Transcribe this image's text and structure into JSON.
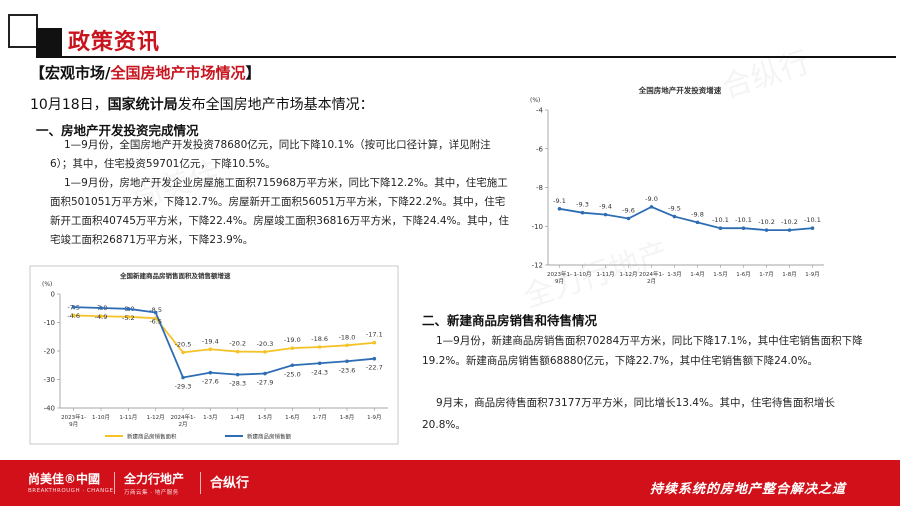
{
  "header": {
    "title": "政策资讯"
  },
  "section_title": {
    "prefix": "【宏观市场/",
    "highlight": "全国房地产市场情况",
    "suffix": "】"
  },
  "intro": {
    "date": "10月18日，",
    "org": "国家统计局",
    "rest": "发布全国房地产市场基本情况："
  },
  "part1": {
    "heading": "一、房地产开发投资完成情况",
    "para1": "1—9月份，全国房地产开发投资78680亿元，同比下降10.1%（按可比口径计算，详见附注6）；其中，住宅投资59701亿元，下降10.5%。",
    "para2": "1—9月份，房地产开发企业房屋施工面积715968万平方米，同比下降12.2%。其中，住宅施工面积501051万平方米，下降12.7%。房屋新开工面积56051万平方米，下降22.2%。其中，住宅新开工面积40745万平方米，下降22.4%。房屋竣工面积36816万平方米，下降24.4%。其中，住宅竣工面积26871万平方米，下降23.9%。"
  },
  "part2": {
    "heading": "二、新建商品房销售和待售情况",
    "para1": "1—9月份，新建商品房销售面积70284万平方米，同比下降17.1%，其中住宅销售面积下降19.2%。新建商品房销售额68880亿元，下降22.7%，其中住宅销售额下降24.0%。",
    "para2": "9月末，商品房待售面积73177万平方米，同比增长13.4%。其中，住宅待售面积增长20.8%。"
  },
  "footer": {
    "brand1": "尚美佳®中國",
    "brand1_sub": "BREAKTHROUGH · CHANGE",
    "brand2": "全力行地产",
    "brand2_sub": "万商云集 · 地产服务",
    "brand3": "合纵行",
    "slogan": "持续系统的房地产整合解决之道"
  },
  "watermarks": [
    "尚美佳",
    "全力行地产",
    "合纵行"
  ],
  "chart_data": [
    {
      "type": "line",
      "title": "全国房地产开发投资增速",
      "ylabel": "(%)",
      "ylim": [
        -12,
        -4
      ],
      "yticks": [
        -4,
        -6,
        -8,
        -10,
        -12
      ],
      "grid": false,
      "categories": [
        "2023年1-9月",
        "1-10月",
        "1-11月",
        "1-12月",
        "2024年1-2月",
        "1-3月",
        "1-4月",
        "1-5月",
        "1-6月",
        "1-7月",
        "1-8月",
        "1-9月"
      ],
      "series": [
        {
          "values": [
            -9.1,
            -9.3,
            -9.4,
            -9.6,
            -9.0,
            -9.5,
            -9.8,
            -10.1,
            -10.1,
            -10.2,
            -10.2,
            -10.1
          ],
          "labels": [
            "-9.1",
            "-9.3",
            "-9.4",
            "-9.6",
            "-9.0",
            "-9.5",
            "-9.8",
            "-10.1",
            "-10.1",
            "-10.2",
            "-10.2",
            "-10.1"
          ],
          "color": "#2e6db4"
        }
      ]
    },
    {
      "type": "line",
      "title": "全国新建商品房销售面积及销售额增速",
      "ylabel": "(%)",
      "ylim": [
        -40,
        0
      ],
      "yticks": [
        0,
        -10,
        -20,
        -30,
        -40
      ],
      "grid": false,
      "legend": "bottom",
      "categories": [
        "2023年1-9月",
        "1-10月",
        "1-11月",
        "1-12月",
        "2024年1-2月",
        "1-3月",
        "1-4月",
        "1-5月",
        "1-6月",
        "1-7月",
        "1-8月",
        "1-9月"
      ],
      "series": [
        {
          "name": "新建商品房销售面积",
          "values": [
            -7.5,
            -7.8,
            -8.0,
            -8.5,
            -20.5,
            -19.4,
            -20.2,
            -20.3,
            -19.0,
            -18.6,
            -18.0,
            -17.1
          ],
          "labels": [
            "-7.5",
            "-7.8",
            "-8.0",
            "-8.5",
            "-20.5",
            "-19.4",
            "-20.2",
            "-20.3",
            "-19.0",
            "-18.6",
            "-18.0",
            "-17.1"
          ],
          "color": "#f5c227"
        },
        {
          "name": "新建商品房销售额",
          "values": [
            -4.6,
            -4.9,
            -5.2,
            -6.5,
            -29.3,
            -27.6,
            -28.3,
            -27.9,
            -25.0,
            -24.3,
            -23.6,
            -22.7
          ],
          "labels": [
            "-4.6",
            "-4.9",
            "-5.2",
            "-6.5",
            "-29.3",
            "-27.6",
            "-28.3",
            "-27.9",
            "-25.0",
            "-24.3",
            "-23.6",
            "-22.7"
          ],
          "color": "#2e6db4"
        }
      ]
    }
  ]
}
